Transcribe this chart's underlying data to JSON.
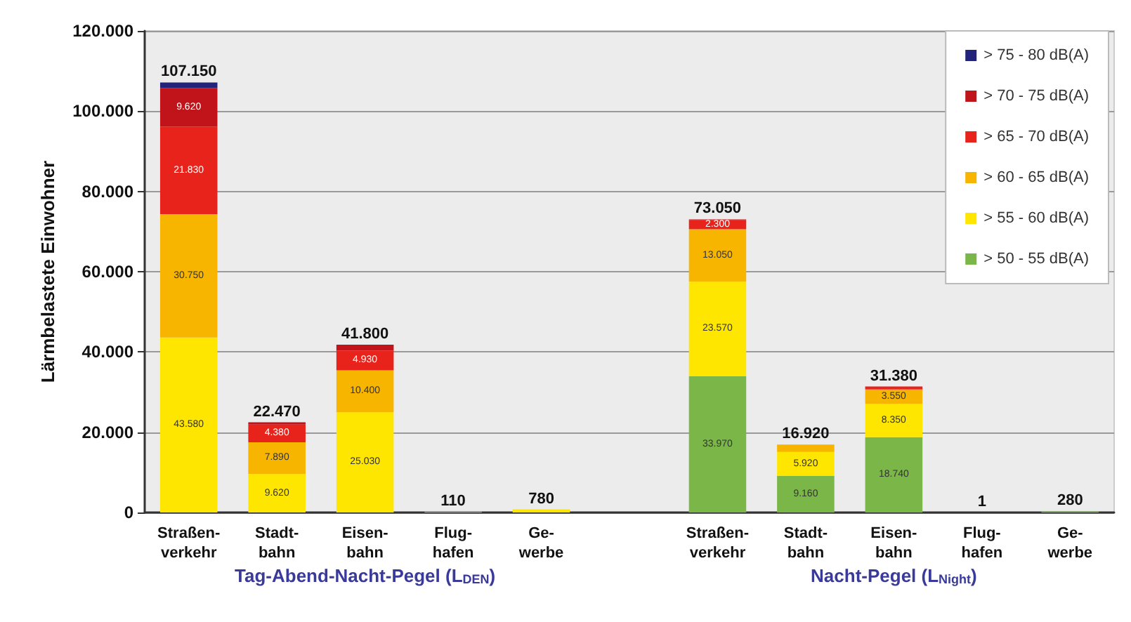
{
  "chart_data": {
    "type": "bar",
    "stacked": true,
    "ylabel": "Lärmbelastete Einwohner",
    "categories": [
      "Straßen-\nverkehr",
      "Stadt-\nbahn",
      "Eisen-\nbahn",
      "Flug-\nhafen",
      "Ge-\nwerbe",
      null,
      "Straßen-\nverkehr",
      "Stadt-\nbahn",
      "Eisen-\nbahn",
      "Flug-\nhafen",
      "Ge-\nwerbe"
    ],
    "series": [
      {
        "name": "> 50 - 55 dB(A)",
        "color": "#7ab648",
        "values": [
          null,
          null,
          null,
          null,
          null,
          null,
          33970,
          9160,
          18740,
          1,
          280
        ],
        "value_labels": [
          null,
          null,
          null,
          null,
          null,
          null,
          "33.970",
          "9.160",
          "18.740",
          null,
          null
        ]
      },
      {
        "name": "> 55 - 60 dB(A)",
        "color": "#ffe600",
        "values": [
          43580,
          9620,
          25030,
          110,
          780,
          null,
          23570,
          5920,
          8350,
          null,
          null
        ],
        "value_labels": [
          "43.580",
          "9.620",
          "25.030",
          null,
          null,
          null,
          "23.570",
          "5.920",
          "8.350",
          null,
          null
        ]
      },
      {
        "name": "> 60 - 65 dB(A)",
        "color": "#f7b500",
        "values": [
          30750,
          7890,
          10400,
          null,
          null,
          null,
          13050,
          1840,
          3550,
          null,
          null
        ],
        "value_labels": [
          "30.750",
          "7.890",
          "10.400",
          null,
          null,
          null,
          "13.050",
          null,
          "3.550",
          null,
          null
        ]
      },
      {
        "name": "> 65 - 70 dB(A)",
        "color": "#e8231c",
        "values": [
          21830,
          4380,
          4930,
          null,
          null,
          null,
          2300,
          null,
          740,
          null,
          null
        ],
        "value_labels": [
          "21.830",
          "4.380",
          "4.930",
          null,
          null,
          null,
          "2.300",
          null,
          null,
          null,
          null
        ]
      },
      {
        "name": "> 70 - 75 dB(A)",
        "color": "#c0141a",
        "values": [
          9620,
          580,
          1440,
          null,
          null,
          null,
          160,
          null,
          null,
          null,
          null
        ],
        "value_labels": [
          "9.620",
          null,
          null,
          null,
          null,
          null,
          null,
          null,
          null,
          null,
          null
        ]
      },
      {
        "name": "> 75 - 80 dB(A)",
        "color": "#23237a",
        "values": [
          1370,
          null,
          null,
          null,
          null,
          null,
          null,
          null,
          null,
          null,
          null
        ],
        "value_labels": [
          null,
          null,
          null,
          null,
          null,
          null,
          null,
          null,
          null,
          null,
          null
        ]
      }
    ],
    "totals": [
      "107.150",
      "22.470",
      "41.800",
      "110",
      "780",
      null,
      "73.050",
      "16.920",
      "31.380",
      "1",
      "280"
    ],
    "ylim": [
      0,
      120000
    ],
    "yticks": [
      {
        "value": 0,
        "label": "0"
      },
      {
        "value": 20000,
        "label": "20.000"
      },
      {
        "value": 40000,
        "label": "40.000"
      },
      {
        "value": 60000,
        "label": "60.000"
      },
      {
        "value": 80000,
        "label": "80.000"
      },
      {
        "value": 100000,
        "label": "100.000"
      },
      {
        "value": 120000,
        "label": "120.000"
      }
    ],
    "grid": "y",
    "legend": "top right",
    "annotations": [
      "Tag-Abend-Nacht-Pegel (L$_{DEN}$)",
      "Nacht-Pegel (L$_{Night}$)"
    ]
  }
}
